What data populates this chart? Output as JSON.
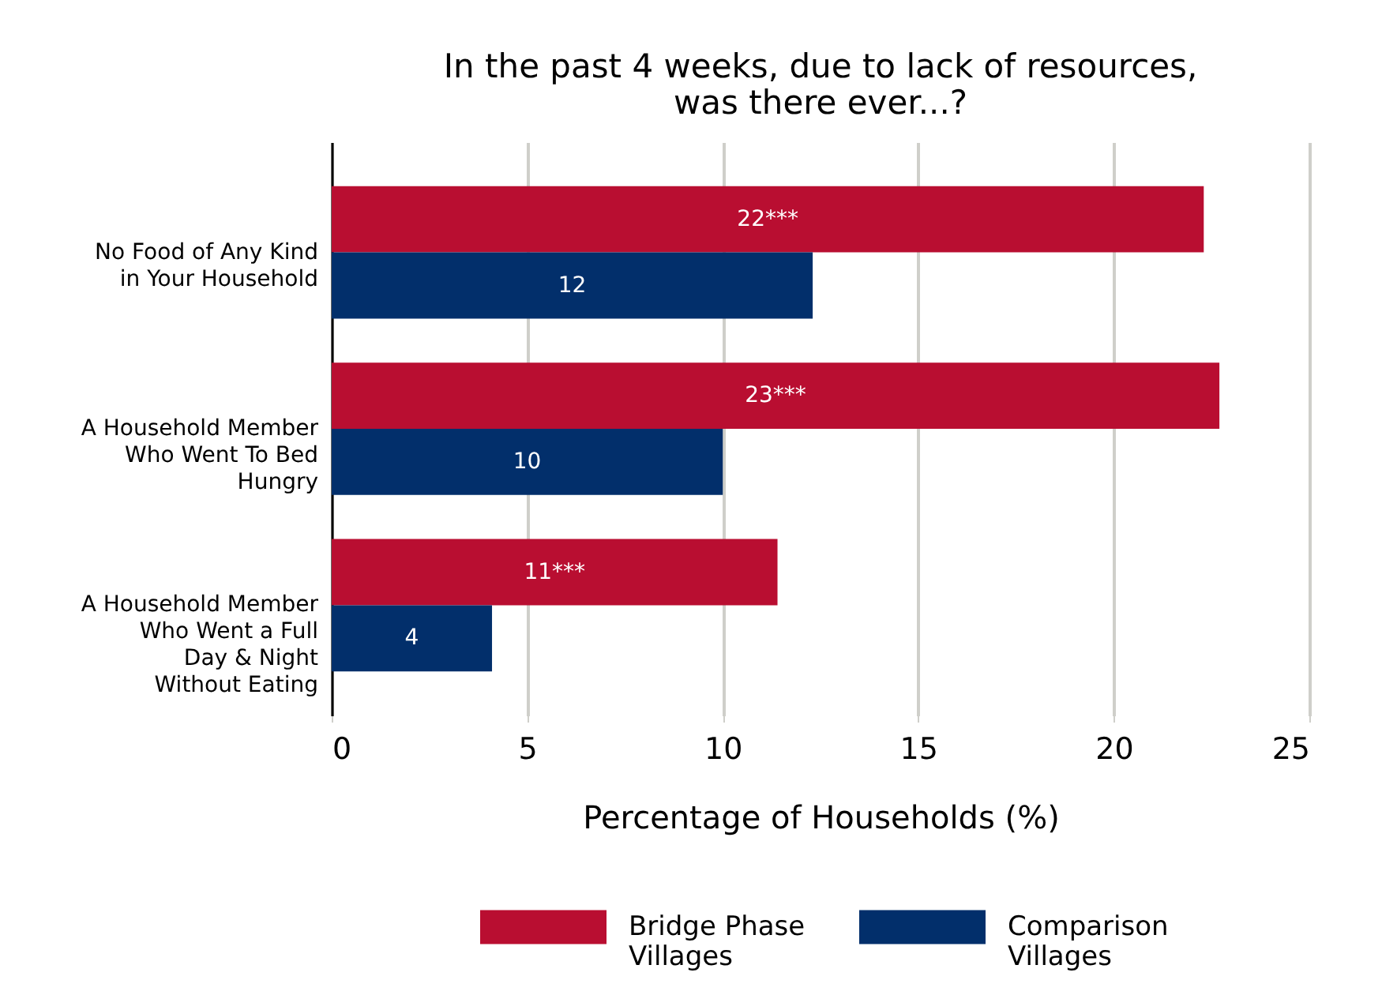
{
  "chart_data": {
    "type": "bar",
    "orientation": "horizontal",
    "title": "In the past 4 weeks, due to lack of resources,\nwas there ever...?",
    "xlabel": "Percentage of Households (%)",
    "categories": [
      "No Food of Any Kind\nin Your Household",
      "A Household Member\nWho Went To Bed\nHungry",
      "A Household Member\nWho Went a Full\nDay & Night\nWithout Eating"
    ],
    "series": [
      {
        "name": "Bridge Phase\nVillages",
        "color": "#b90e31",
        "values": [
          22.3,
          22.7,
          11.4
        ],
        "value_labels": [
          "22***",
          "23***",
          "11***"
        ]
      },
      {
        "name": "Comparison\nVillages",
        "color": "#022f6b",
        "values": [
          12.3,
          10.0,
          4.1
        ],
        "value_labels": [
          "12",
          "10",
          "4"
        ]
      }
    ],
    "xlim": [
      0,
      25
    ],
    "xticks": [
      0,
      5,
      10,
      15,
      20,
      25
    ],
    "grid": "x",
    "legend": "bottom"
  }
}
